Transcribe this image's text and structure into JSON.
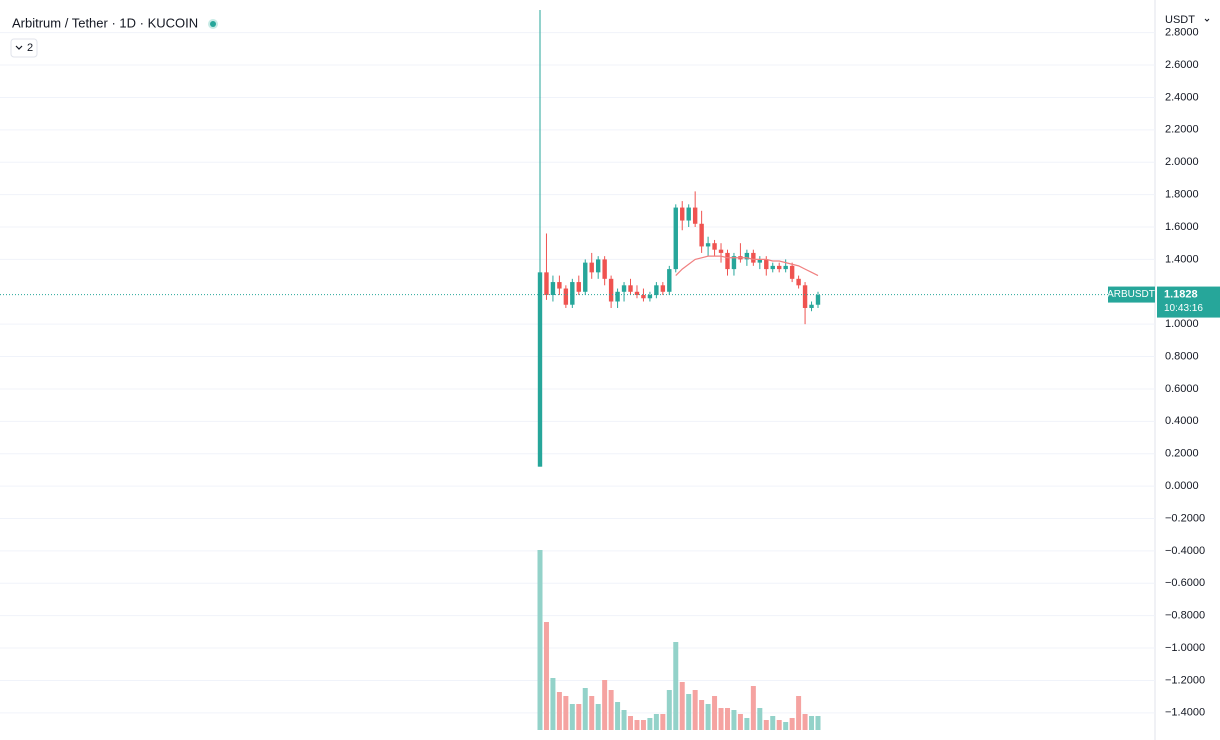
{
  "header": {
    "title": "Arbitrum / Tether · 1D · KUCOIN",
    "indicator_count": "2"
  },
  "chart_data": {
    "type": "candlestick",
    "currency": "USDT",
    "symbol": "ARBUSDT",
    "last_price": 1.1828,
    "last_price_label": "1.1828",
    "countdown": "10:43:16",
    "up_color": "#26a69a",
    "down_color": "#ef5350",
    "volume_up_color": "#93d2c9",
    "volume_down_color": "#f5a3a1",
    "ylim": [
      -1.506,
      2.94
    ],
    "yticks": [
      {
        "value": 2.8,
        "label": "2.8000"
      },
      {
        "value": 2.6,
        "label": "2.6000"
      },
      {
        "value": 2.4,
        "label": "2.4000"
      },
      {
        "value": 2.2,
        "label": "2.2000"
      },
      {
        "value": 2.0,
        "label": "2.0000"
      },
      {
        "value": 1.8,
        "label": "1.8000"
      },
      {
        "value": 1.6,
        "label": "1.6000"
      },
      {
        "value": 1.4,
        "label": "1.4000"
      },
      {
        "value": 1.0,
        "label": "1.0000"
      },
      {
        "value": 0.8,
        "label": "0.8000"
      },
      {
        "value": 0.6,
        "label": "0.6000"
      },
      {
        "value": 0.4,
        "label": "0.4000"
      },
      {
        "value": 0.2,
        "label": "0.2000"
      },
      {
        "value": 0.0,
        "label": "0.0000"
      },
      {
        "value": -0.2,
        "label": "−0.2000"
      },
      {
        "value": -0.4,
        "label": "−0.4000"
      },
      {
        "value": -0.6,
        "label": "−0.6000"
      },
      {
        "value": -0.8,
        "label": "−0.8000"
      },
      {
        "value": -1.0,
        "label": "−1.0000"
      },
      {
        "value": -1.2,
        "label": "−1.2000"
      },
      {
        "value": -1.4,
        "label": "−1.4000"
      }
    ],
    "grid": true,
    "open": [
      0.12,
      1.32,
      1.18,
      1.26,
      1.22,
      1.12,
      1.26,
      1.2,
      1.38,
      1.32,
      1.4,
      1.28,
      1.14,
      1.2,
      1.24,
      1.2,
      1.18,
      1.16,
      1.18,
      1.24,
      1.2,
      1.34,
      1.72,
      1.64,
      1.72,
      1.62,
      1.48,
      1.5,
      1.46,
      1.44,
      1.34,
      1.42,
      1.4,
      1.44,
      1.38,
      1.4,
      1.34,
      1.36,
      1.34,
      1.36,
      1.28,
      1.24,
      1.1,
      1.12
    ],
    "high": [
      2.94,
      1.56,
      1.3,
      1.3,
      1.24,
      1.28,
      1.3,
      1.4,
      1.44,
      1.42,
      1.42,
      1.3,
      1.22,
      1.26,
      1.28,
      1.24,
      1.22,
      1.2,
      1.26,
      1.26,
      1.36,
      1.74,
      1.76,
      1.74,
      1.82,
      1.7,
      1.54,
      1.52,
      1.5,
      1.46,
      1.44,
      1.5,
      1.46,
      1.46,
      1.42,
      1.42,
      1.38,
      1.38,
      1.4,
      1.38,
      1.3,
      1.26,
      1.14,
      1.2
    ],
    "low": [
      0.12,
      1.15,
      1.14,
      1.18,
      1.1,
      1.1,
      1.18,
      1.18,
      1.28,
      1.28,
      1.24,
      1.1,
      1.1,
      1.14,
      1.18,
      1.16,
      1.14,
      1.14,
      1.16,
      1.18,
      1.18,
      1.32,
      1.58,
      1.6,
      1.6,
      1.44,
      1.42,
      1.42,
      1.38,
      1.3,
      1.3,
      1.38,
      1.36,
      1.36,
      1.34,
      1.3,
      1.32,
      1.32,
      1.32,
      1.26,
      1.22,
      1.0,
      1.08,
      1.1
    ],
    "close": [
      1.32,
      1.18,
      1.26,
      1.22,
      1.12,
      1.26,
      1.2,
      1.38,
      1.32,
      1.4,
      1.28,
      1.14,
      1.2,
      1.24,
      1.2,
      1.18,
      1.16,
      1.18,
      1.24,
      1.2,
      1.34,
      1.72,
      1.64,
      1.72,
      1.62,
      1.48,
      1.5,
      1.46,
      1.44,
      1.34,
      1.42,
      1.4,
      1.44,
      1.38,
      1.4,
      1.34,
      1.36,
      1.34,
      1.36,
      1.28,
      1.24,
      1.1,
      1.12,
      1.18
    ],
    "ma": {
      "color": "#f08080",
      "values": [
        null,
        null,
        null,
        null,
        null,
        null,
        null,
        null,
        null,
        null,
        null,
        null,
        null,
        null,
        null,
        null,
        null,
        null,
        null,
        null,
        null,
        1.3,
        1.34,
        1.37,
        1.4,
        1.41,
        1.42,
        1.42,
        1.42,
        1.41,
        1.41,
        1.41,
        1.41,
        1.4,
        1.4,
        1.4,
        1.39,
        1.39,
        1.38,
        1.37,
        1.36,
        1.34,
        1.32,
        1.3
      ]
    },
    "vlim": [
      0,
      100
    ],
    "volume": [
      90,
      54,
      26,
      19,
      17,
      13,
      13,
      21,
      17,
      13,
      25,
      20,
      14,
      10,
      7,
      5,
      5,
      6,
      8,
      8,
      20,
      44,
      24,
      18,
      20,
      15,
      13,
      17,
      11,
      11,
      10,
      8,
      6,
      22,
      11,
      5,
      7,
      5,
      4,
      6,
      17,
      8,
      7,
      7
    ]
  }
}
